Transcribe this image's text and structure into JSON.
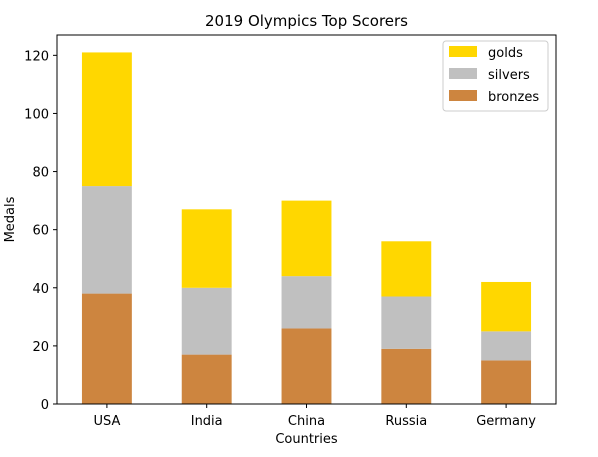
{
  "chart_data": {
    "type": "bar",
    "stacked": true,
    "title": "2019 Olympics Top Scorers",
    "xlabel": "Countries",
    "ylabel": "Medals",
    "categories": [
      "USA",
      "India",
      "China",
      "Russia",
      "Germany"
    ],
    "series": [
      {
        "name": "bronzes",
        "values": [
          38,
          17,
          26,
          19,
          15
        ],
        "color": "#cd853f"
      },
      {
        "name": "silvers",
        "values": [
          37,
          23,
          18,
          18,
          10
        ],
        "color": "#c0c0c0"
      },
      {
        "name": "golds",
        "values": [
          46,
          27,
          26,
          19,
          17
        ],
        "color": "#ffd700"
      }
    ],
    "legend_order": [
      "golds",
      "silvers",
      "bronzes"
    ],
    "legend_position": "top-right",
    "ylim": [
      0,
      127
    ],
    "yticks": [
      0,
      20,
      40,
      60,
      80,
      100,
      120
    ],
    "grid": false
  }
}
